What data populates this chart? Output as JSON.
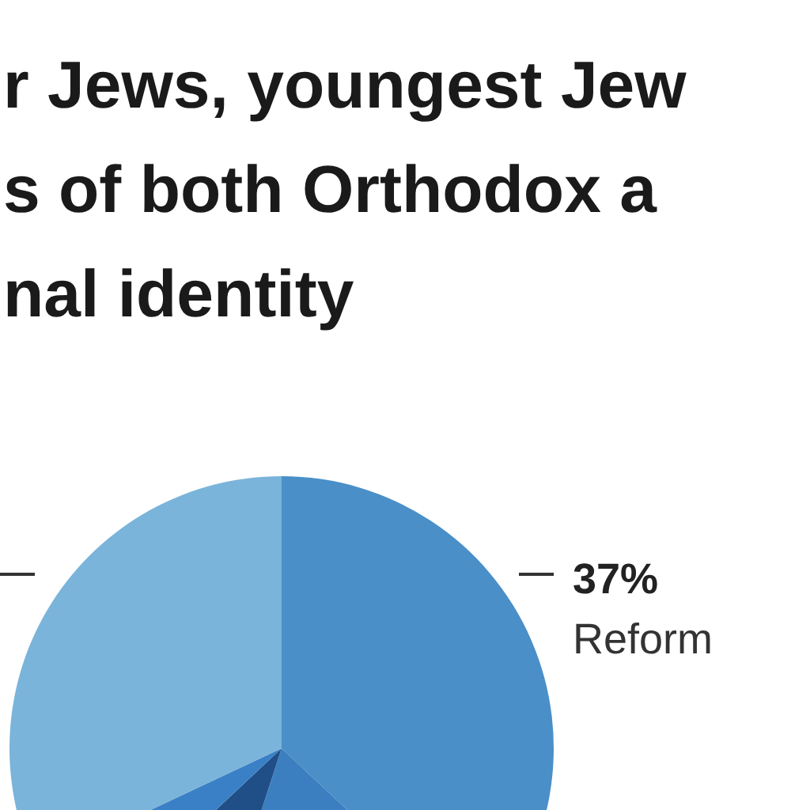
{
  "chart_data": {
    "type": "pie",
    "title": "r Jews, youngest Jew\ns of both Orthodox a\nnal identity",
    "categories": [
      "Reform",
      null,
      null,
      null,
      null
    ],
    "values": [
      37,
      18,
      8,
      5,
      32
    ],
    "colors": [
      "#4a8fc8",
      "#3c7fc0",
      "#1f4f86",
      "#3a80c6",
      "#7ab4da"
    ],
    "value_labels": [
      "37%",
      null,
      null,
      null,
      null
    ]
  }
}
